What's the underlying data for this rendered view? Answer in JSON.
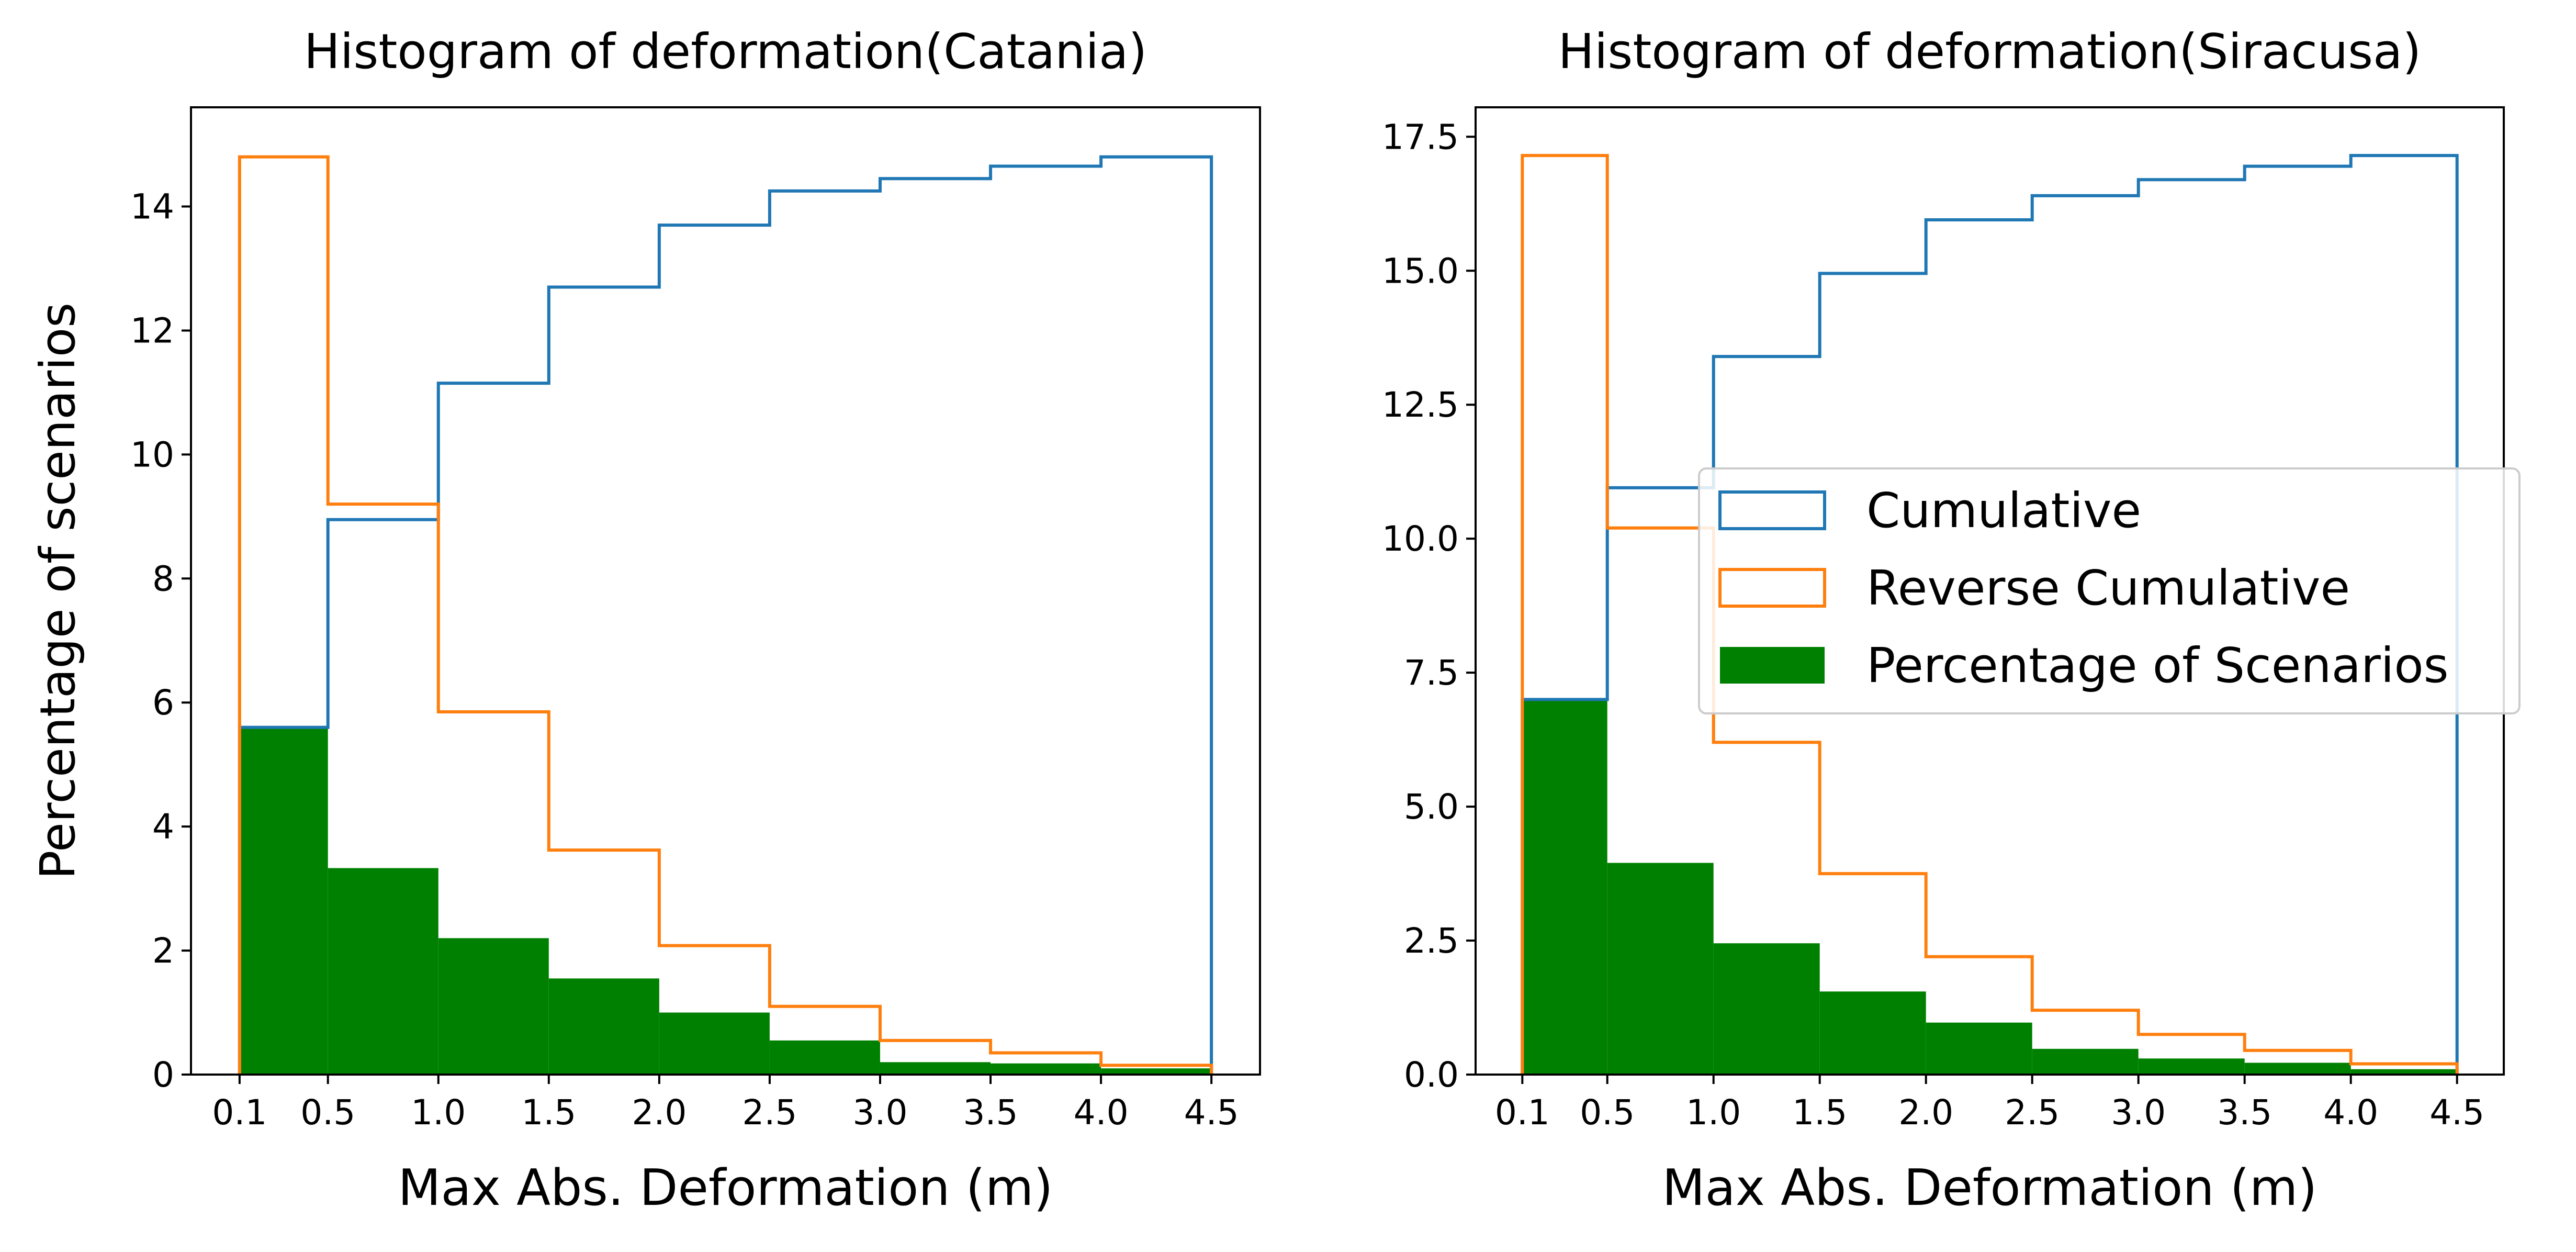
{
  "colors": {
    "cumulative": "#1f77b4",
    "reverse_cumulative": "#ff7f0e",
    "percentage": "#008000",
    "axes": "#000000",
    "background": "#ffffff"
  },
  "chart_data": [
    {
      "type": "bar",
      "title": "Histogram of deformation(Catania)",
      "xlabel": "Max Abs. Deformation (m)",
      "ylabel": "Percentage of scenarios",
      "bin_edges": [
        0.1,
        0.5,
        1.0,
        1.5,
        2.0,
        2.5,
        3.0,
        3.5,
        4.0,
        4.5
      ],
      "xlim": [
        -0.12,
        4.72
      ],
      "ylim": [
        0,
        15.6
      ],
      "x_ticks": [
        0.1,
        0.5,
        1.0,
        1.5,
        2.0,
        2.5,
        3.0,
        3.5,
        4.0,
        4.5
      ],
      "x_tick_labels": [
        "0.1",
        "0.5",
        "1.0",
        "1.5",
        "2.0",
        "2.5",
        "3.0",
        "3.5",
        "4.0",
        "4.5"
      ],
      "y_ticks": [
        0,
        2,
        4,
        6,
        8,
        10,
        12,
        14
      ],
      "y_tick_labels": [
        "0",
        "2",
        "4",
        "6",
        "8",
        "10",
        "12",
        "14"
      ],
      "grid": false,
      "legend": null,
      "series": [
        {
          "name": "Cumulative",
          "style": "step",
          "values": [
            5.6,
            8.95,
            11.15,
            12.7,
            13.7,
            14.25,
            14.45,
            14.65,
            14.8
          ]
        },
        {
          "name": "Reverse Cumulative",
          "style": "step",
          "values": [
            14.8,
            9.2,
            5.85,
            3.62,
            2.08,
            1.1,
            0.55,
            0.35,
            0.15
          ]
        },
        {
          "name": "Percentage of Scenarios",
          "style": "filled",
          "values": [
            5.6,
            3.33,
            2.2,
            1.55,
            1.0,
            0.55,
            0.2,
            0.18,
            0.1
          ]
        }
      ]
    },
    {
      "type": "bar",
      "title": "Histogram of deformation(Siracusa)",
      "xlabel": "Max Abs. Deformation (m)",
      "ylabel": "",
      "bin_edges": [
        0.1,
        0.5,
        1.0,
        1.5,
        2.0,
        2.5,
        3.0,
        3.5,
        4.0,
        4.5
      ],
      "xlim": [
        -0.12,
        4.72
      ],
      "ylim": [
        0,
        18.05
      ],
      "x_ticks": [
        0.1,
        0.5,
        1.0,
        1.5,
        2.0,
        2.5,
        3.0,
        3.5,
        4.0,
        4.5
      ],
      "x_tick_labels": [
        "0.1",
        "0.5",
        "1.0",
        "1.5",
        "2.0",
        "2.5",
        "3.0",
        "3.5",
        "4.0",
        "4.5"
      ],
      "y_ticks": [
        0,
        2.5,
        5,
        7.5,
        10,
        12.5,
        15,
        17.5
      ],
      "y_tick_labels": [
        "0.0",
        "2.5",
        "5.0",
        "7.5",
        "10.0",
        "12.5",
        "15.0",
        "17.5"
      ],
      "grid": false,
      "legend": {
        "placement": "center-right",
        "entries": [
          {
            "label": "Cumulative",
            "kind": "outline",
            "color_key": "cumulative"
          },
          {
            "label": "Reverse Cumulative",
            "kind": "outline",
            "color_key": "reverse_cumulative"
          },
          {
            "label": "Percentage of Scenarios",
            "kind": "filled",
            "color_key": "percentage"
          }
        ]
      },
      "series": [
        {
          "name": "Cumulative",
          "style": "step",
          "values": [
            7.0,
            10.95,
            13.4,
            14.95,
            15.95,
            16.4,
            16.7,
            16.95,
            17.15
          ]
        },
        {
          "name": "Reverse Cumulative",
          "style": "step",
          "values": [
            17.15,
            10.2,
            6.2,
            3.75,
            2.2,
            1.2,
            0.75,
            0.45,
            0.2
          ]
        },
        {
          "name": "Percentage of Scenarios",
          "style": "filled",
          "values": [
            7.0,
            3.95,
            2.45,
            1.55,
            0.97,
            0.48,
            0.3,
            0.22,
            0.1
          ]
        }
      ]
    }
  ]
}
